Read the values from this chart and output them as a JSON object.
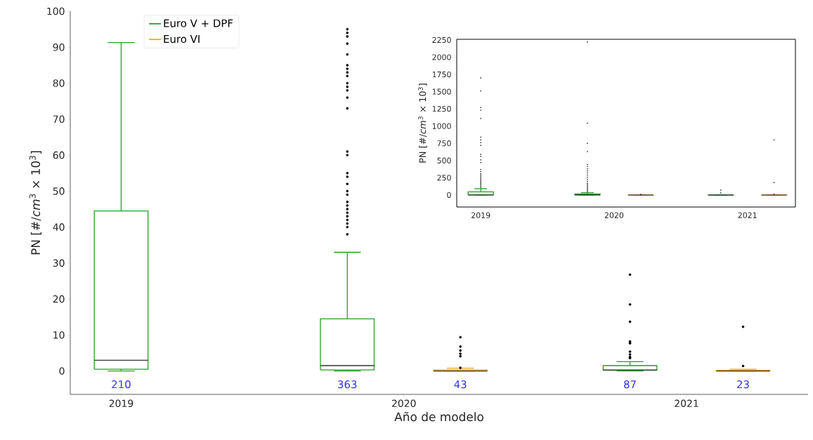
{
  "chart_data": [
    {
      "type": "box",
      "xlabel": "Año de modelo",
      "ylabel": "PN [#/*cm*$^{3}$  × 10$^{3}$]",
      "categories": [
        "2019",
        "2020",
        "2021"
      ],
      "series": [
        {
          "name": "Euro V + DPF",
          "color": "#22a022",
          "boxes": [
            {
              "low": 0,
              "q1": 0.5,
              "median": 3,
              "q3": 44.5,
              "high": 91.3
            },
            {
              "low": 0,
              "q1": 0.3,
              "median": 1.5,
              "q3": 14.5,
              "high": 33,
              "outliers": [
                38,
                40,
                41,
                42,
                43,
                44,
                45,
                46,
                47,
                49,
                50,
                52,
                54,
                55,
                60,
                61,
                73,
                76,
                78,
                79,
                80,
                82,
                83,
                84,
                85,
                88,
                91,
                93,
                94,
                95
              ]
            },
            {
              "low": 0,
              "q1": 0.2,
              "median": 0.3,
              "q3": 1.5,
              "high": 2.6,
              "outliers": [
                3.6,
                3.9,
                4.6,
                5.4,
                7.7,
                8.2,
                13.7,
                18.5,
                26.8
              ]
            }
          ]
        },
        {
          "name": "Euro VI",
          "color": "#ffa500",
          "boxes": [
            null,
            {
              "low": 0,
              "q1": 0,
              "median": 0,
              "q3": 0.3,
              "high": 0.8,
              "outliers": [
                0.9,
                4.1,
                4.8,
                5.7,
                6.8,
                9.4
              ]
            },
            {
              "low": 0,
              "q1": 0,
              "median": 0,
              "q3": 0.2,
              "high": 0.5,
              "outliers": [
                1.4,
                12.3
              ]
            }
          ]
        }
      ],
      "ylim": [
        -6.5,
        100
      ],
      "yticks": [
        0,
        10,
        20,
        30,
        40,
        50,
        60,
        70,
        80,
        90,
        100
      ],
      "legend": "top left",
      "annotations": [
        "210",
        "363",
        "43",
        "87",
        "23"
      ]
    },
    {
      "type": "box",
      "ylabel": "PN [#/*cm*$^{3}$  × 10$^{3}$]",
      "categories": [
        "2019",
        "2020",
        "2021"
      ],
      "series": [
        {
          "color": "#22a022",
          "boxes": [
            {
              "low": 0,
              "q1": 0.5,
              "median": 3,
              "q3": 44.5,
              "high": 91.3,
              "outliers": [
                110,
                130,
                150,
                170,
                190,
                210,
                230,
                250,
                270,
                290,
                310,
                340,
                370,
                470,
                510,
                560,
                590,
                720,
                760,
                800,
                840,
                1110,
                1230,
                1270,
                1510,
                1700
              ]
            },
            {
              "low": 0,
              "q1": 0.3,
              "median": 1.5,
              "q3": 14.5,
              "high": 33,
              "outliers": [
                50,
                70,
                90,
                110,
                130,
                150,
                170,
                200,
                230,
                260,
                290,
                320,
                350,
                380,
                410,
                440,
                630,
                750,
                1040,
                2220
              ]
            },
            {
              "low": 0,
              "q1": 0.2,
              "median": 0.3,
              "q3": 1.5,
              "high": 2.6,
              "outliers": [
                30,
                70
              ]
            }
          ]
        },
        {
          "color": "#ffa500",
          "boxes": [
            null,
            {
              "low": 0,
              "q1": 0,
              "median": 0,
              "q3": 0.3,
              "high": 0.8,
              "outliers": [
                9.4
              ]
            },
            {
              "low": 0,
              "q1": 0,
              "median": 0,
              "q3": 0.2,
              "high": 0.5,
              "outliers": [
                12.3,
                180,
                800
              ]
            }
          ]
        }
      ],
      "ylim": [
        -175,
        2260
      ],
      "yticks": [
        0,
        250,
        500,
        750,
        1000,
        1250,
        1500,
        1750,
        2000,
        2250
      ]
    }
  ]
}
